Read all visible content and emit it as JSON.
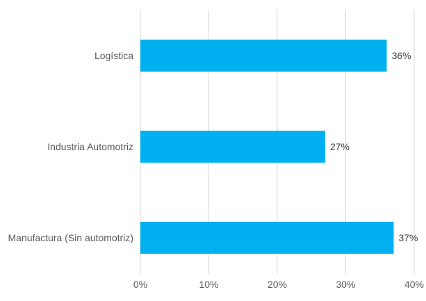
{
  "chart_data": {
    "type": "bar",
    "orientation": "horizontal",
    "categories": [
      "Logística",
      "Industria Automotriz",
      "Manufactura (Sin automotriz)"
    ],
    "values": [
      36,
      27,
      37
    ],
    "value_labels": [
      "36%",
      "27%",
      "37%"
    ],
    "x_ticks": [
      0,
      10,
      20,
      30,
      40
    ],
    "x_tick_labels": [
      "0%",
      "10%",
      "20%",
      "30%",
      "40%"
    ],
    "xlim": [
      0,
      40
    ],
    "title": "",
    "xlabel": "",
    "ylabel": "",
    "grid": "vertical",
    "legend": "none",
    "bar_color": "#00b0f0"
  }
}
